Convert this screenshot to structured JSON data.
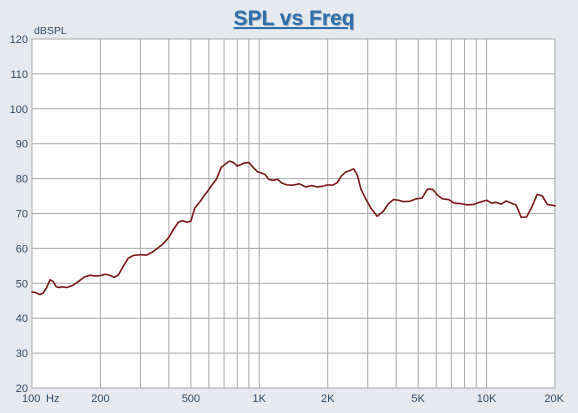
{
  "colors": {
    "background": "#e6eaee",
    "plot_bg": "#ffffff",
    "grid": "#a8a8a8",
    "axis_text": "#2f4a66",
    "title": "#2e6fae",
    "title_shadow": "#9aa6b4",
    "curve": "#7a1616"
  },
  "chart_data": {
    "type": "line",
    "title": "SPL vs Freq",
    "ylabel": "dBSPL",
    "xlabel": "",
    "x_scale": "log",
    "xlim": [
      100,
      20000
    ],
    "ylim": [
      20,
      120
    ],
    "grid": true,
    "legend": "none",
    "y_ticks": [
      20,
      30,
      40,
      50,
      60,
      70,
      80,
      90,
      100,
      110,
      120
    ],
    "x_tick_labels": [
      {
        "value": 100,
        "label": "100"
      },
      {
        "value": 200,
        "label": "200"
      },
      {
        "value": 500,
        "label": "500"
      },
      {
        "value": 1000,
        "label": "1K"
      },
      {
        "value": 2000,
        "label": "2K"
      },
      {
        "value": 5000,
        "label": "5K"
      },
      {
        "value": 10000,
        "label": "10K"
      },
      {
        "value": 20000,
        "label": "20K"
      }
    ],
    "x_unit_label": "Hz",
    "x_gridlines": [
      100,
      200,
      300,
      400,
      500,
      600,
      700,
      800,
      900,
      1000,
      2000,
      3000,
      4000,
      5000,
      6000,
      7000,
      8000,
      9000,
      10000,
      20000
    ],
    "series": [
      {
        "x": [
          100,
          104,
          108,
          112,
          116,
          120,
          124,
          128,
          132,
          136,
          142,
          150,
          160,
          170,
          180,
          190,
          200,
          210,
          220,
          230,
          240,
          250,
          265,
          280,
          300,
          320,
          340,
          360,
          380,
          400,
          420,
          440,
          460,
          480,
          500,
          520,
          550,
          570,
          590,
          620,
          650,
          680,
          710,
          740,
          770,
          800,
          830,
          860,
          900,
          940,
          980,
          1020,
          1060,
          1100,
          1150,
          1200,
          1260,
          1320,
          1400,
          1500,
          1600,
          1700,
          1800,
          1900,
          2000,
          2100,
          2200,
          2300,
          2400,
          2500,
          2600,
          2700,
          2800,
          2950,
          3100,
          3300,
          3500,
          3700,
          3900,
          4100,
          4300,
          4600,
          4900,
          5200,
          5500,
          5800,
          6100,
          6400,
          6800,
          7200,
          7700,
          8200,
          8800,
          9400,
          10000,
          10500,
          11000,
          11600,
          12200,
          12800,
          13500,
          14200,
          15000,
          15800,
          16700,
          17600,
          18500,
          19300,
          20000
        ],
        "values": [
          47.5,
          47.3,
          46.8,
          47.2,
          48.8,
          51.0,
          50.5,
          49.0,
          48.8,
          49.0,
          48.8,
          49.3,
          50.5,
          51.8,
          52.3,
          52.1,
          52.2,
          52.6,
          52.3,
          51.7,
          52.4,
          54.5,
          57.2,
          58.0,
          58.2,
          58.1,
          59.0,
          60.2,
          61.5,
          63.2,
          65.5,
          67.5,
          68.0,
          67.5,
          67.8,
          71.5,
          73.5,
          75.0,
          76.2,
          78.2,
          80.0,
          83.2,
          84.2,
          85.0,
          84.6,
          83.6,
          84.0,
          84.5,
          84.6,
          83.2,
          82.0,
          81.6,
          81.2,
          79.8,
          79.5,
          79.8,
          78.7,
          78.2,
          78.1,
          78.5,
          77.6,
          78.0,
          77.6,
          77.8,
          78.2,
          78.1,
          78.8,
          80.8,
          81.9,
          82.3,
          82.8,
          81.0,
          77.0,
          74.0,
          71.5,
          69.2,
          70.5,
          72.8,
          74.0,
          73.8,
          73.4,
          73.5,
          74.2,
          74.4,
          77.0,
          76.9,
          75.2,
          74.2,
          74.0,
          73.0,
          72.8,
          72.5,
          72.6,
          73.3,
          73.8,
          73.0,
          73.2,
          72.7,
          73.6,
          73.0,
          72.4,
          68.9,
          69.0,
          71.8,
          75.5,
          75.0,
          72.6,
          72.4,
          72.2
        ]
      }
    ]
  }
}
